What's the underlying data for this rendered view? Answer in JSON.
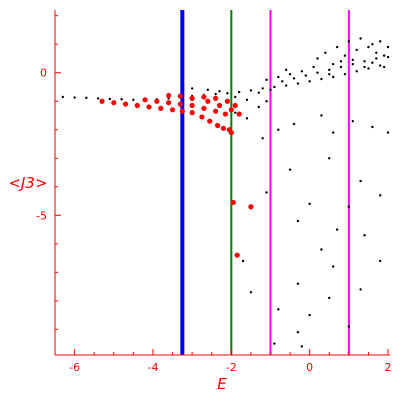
{
  "chart_data": {
    "type": "scatter",
    "title": "",
    "xlabel": "E",
    "ylabel": "<J3>",
    "xlim": [
      -6.5,
      2.05
    ],
    "ylim": [
      -9.9,
      2.2
    ],
    "grid": false,
    "x_ticks": [
      -6,
      -4,
      -2,
      0,
      2
    ],
    "y_ticks": [
      0,
      -5
    ],
    "axis_color": "#ff0000",
    "vertical_lines": [
      {
        "x": -3.25,
        "color": "#0000ff",
        "width": "thick"
      },
      {
        "x": -2.0,
        "color": "#008000",
        "width": "medium"
      },
      {
        "x": -1.0,
        "color": "#ff00ff",
        "width": "medium"
      },
      {
        "x": 1.0,
        "color": "#ff00ff",
        "width": "medium"
      }
    ],
    "series": [
      {
        "color": "#000000",
        "points": [
          [
            -6.3,
            -0.85
          ],
          [
            -6.0,
            -0.87
          ],
          [
            -5.7,
            -0.88
          ],
          [
            -5.4,
            -0.9
          ],
          [
            -5.1,
            -0.92
          ],
          [
            -4.8,
            -0.93
          ],
          [
            -4.5,
            -0.95
          ],
          [
            -4.2,
            -0.96
          ],
          [
            -3.9,
            -0.93
          ],
          [
            -3.6,
            -0.9
          ],
          [
            -3.3,
            -0.86
          ],
          [
            -3.0,
            -0.82
          ],
          [
            -2.7,
            -0.78
          ],
          [
            -2.4,
            -0.75
          ],
          [
            -2.1,
            -0.72
          ],
          [
            -1.8,
            -0.68
          ],
          [
            -1.5,
            -0.62
          ],
          [
            -1.2,
            -0.55
          ],
          [
            -0.9,
            -0.5
          ],
          [
            -0.6,
            -0.45
          ],
          [
            -0.3,
            -0.38
          ],
          [
            0.0,
            -0.3
          ],
          [
            0.3,
            -0.22
          ],
          [
            0.6,
            -0.15
          ],
          [
            0.9,
            -0.05
          ],
          [
            1.2,
            0.05
          ],
          [
            1.5,
            0.15
          ],
          [
            1.8,
            0.25
          ],
          [
            -3.0,
            -0.55
          ],
          [
            -2.6,
            -0.6
          ],
          [
            -2.3,
            -0.65
          ],
          [
            -1.9,
            -0.85
          ],
          [
            -1.6,
            -0.95
          ],
          [
            -1.3,
            -0.7
          ],
          [
            -1.0,
            -0.6
          ],
          [
            -0.7,
            -0.3
          ],
          [
            -0.4,
            -0.2
          ],
          [
            -0.1,
            -0.1
          ],
          [
            0.2,
            0.0
          ],
          [
            0.5,
            0.1
          ],
          [
            0.8,
            0.2
          ],
          [
            1.1,
            0.3
          ],
          [
            1.4,
            0.4
          ],
          [
            1.7,
            0.5
          ],
          [
            2.0,
            0.55
          ],
          [
            0.2,
            0.5
          ],
          [
            0.4,
            0.7
          ],
          [
            0.6,
            0.3
          ],
          [
            0.7,
            0.9
          ],
          [
            0.9,
            0.6
          ],
          [
            1.0,
            1.1
          ],
          [
            1.2,
            0.8
          ],
          [
            1.3,
            1.2
          ],
          [
            1.5,
            0.9
          ],
          [
            1.6,
            1.0
          ],
          [
            1.7,
            0.7
          ],
          [
            1.8,
            1.1
          ],
          [
            1.9,
            0.6
          ],
          [
            2.0,
            0.9
          ],
          [
            1.1,
            0.45
          ],
          [
            1.4,
            0.2
          ],
          [
            1.6,
            0.35
          ],
          [
            1.9,
            0.2
          ],
          [
            0.5,
            -0.05
          ],
          [
            0.8,
            0.4
          ],
          [
            -0.5,
            -0.05
          ],
          [
            -0.2,
            0.05
          ],
          [
            0.1,
            0.2
          ],
          [
            -1.1,
            -0.25
          ],
          [
            -0.8,
            -0.15
          ],
          [
            -0.6,
            0.1
          ],
          [
            -1.9,
            -1.4
          ],
          [
            -1.6,
            -1.6
          ],
          [
            -1.3,
            -1.2
          ],
          [
            -1.1,
            -1.0
          ],
          [
            -0.8,
            -2.0
          ],
          [
            -0.4,
            -1.8
          ],
          [
            -1.2,
            -2.3
          ],
          [
            0.3,
            -1.5
          ],
          [
            0.6,
            -2.1
          ],
          [
            1.1,
            -1.7
          ],
          [
            1.6,
            -1.9
          ],
          [
            2.0,
            -2.1
          ],
          [
            -0.5,
            -3.4
          ],
          [
            0.5,
            -3.0
          ],
          [
            1.3,
            -3.8
          ],
          [
            -1.1,
            -4.2
          ],
          [
            0.0,
            -4.6
          ],
          [
            1.0,
            -4.7
          ],
          [
            1.8,
            -4.3
          ],
          [
            -0.3,
            -5.2
          ],
          [
            0.7,
            -5.5
          ],
          [
            1.4,
            -5.7
          ],
          [
            0.3,
            -6.2
          ],
          [
            1.8,
            -6.6
          ],
          [
            0.6,
            -6.8
          ],
          [
            -0.3,
            -7.4
          ],
          [
            1.3,
            -7.6
          ],
          [
            -1.5,
            -7.7
          ],
          [
            -0.8,
            -8.3
          ],
          [
            0.0,
            -8.5
          ],
          [
            1.0,
            -8.9
          ],
          [
            -0.3,
            -9.1
          ],
          [
            -0.9,
            -9.5
          ],
          [
            -0.2,
            -9.6
          ],
          [
            0.5,
            -7.9
          ],
          [
            -1.7,
            -6.6
          ]
        ]
      },
      {
        "color": "#ff0000",
        "points": [
          [
            -5.3,
            -1.0
          ],
          [
            -5.0,
            -1.05
          ],
          [
            -4.7,
            -1.1
          ],
          [
            -4.4,
            -1.15
          ],
          [
            -4.1,
            -1.2
          ],
          [
            -3.8,
            -1.25
          ],
          [
            -3.5,
            -1.3
          ],
          [
            -3.25,
            -1.35
          ],
          [
            -3.0,
            -1.4
          ],
          [
            -2.75,
            -1.55
          ],
          [
            -2.55,
            -1.7
          ],
          [
            -2.35,
            -1.85
          ],
          [
            -2.2,
            -1.95
          ],
          [
            -2.05,
            -2.0
          ],
          [
            -2.0,
            -2.1
          ],
          [
            -4.2,
            -0.95
          ],
          [
            -3.9,
            -1.0
          ],
          [
            -3.6,
            -1.05
          ],
          [
            -3.3,
            -1.1
          ],
          [
            -3.0,
            -1.15
          ],
          [
            -2.7,
            -1.25
          ],
          [
            -2.4,
            -1.35
          ],
          [
            -2.15,
            -1.45
          ],
          [
            -3.6,
            -0.8
          ],
          [
            -3.3,
            -0.82
          ],
          [
            -3.0,
            -0.9
          ],
          [
            -2.6,
            -1.0
          ],
          [
            -2.3,
            -1.15
          ],
          [
            -2.0,
            -1.3
          ],
          [
            -1.8,
            -1.45
          ],
          [
            -2.7,
            -0.85
          ],
          [
            -2.4,
            -0.9
          ],
          [
            -2.1,
            -1.0
          ],
          [
            -1.9,
            -1.15
          ],
          [
            -1.95,
            -4.55
          ],
          [
            -1.85,
            -6.4
          ],
          [
            -1.5,
            -4.7
          ]
        ]
      }
    ]
  }
}
